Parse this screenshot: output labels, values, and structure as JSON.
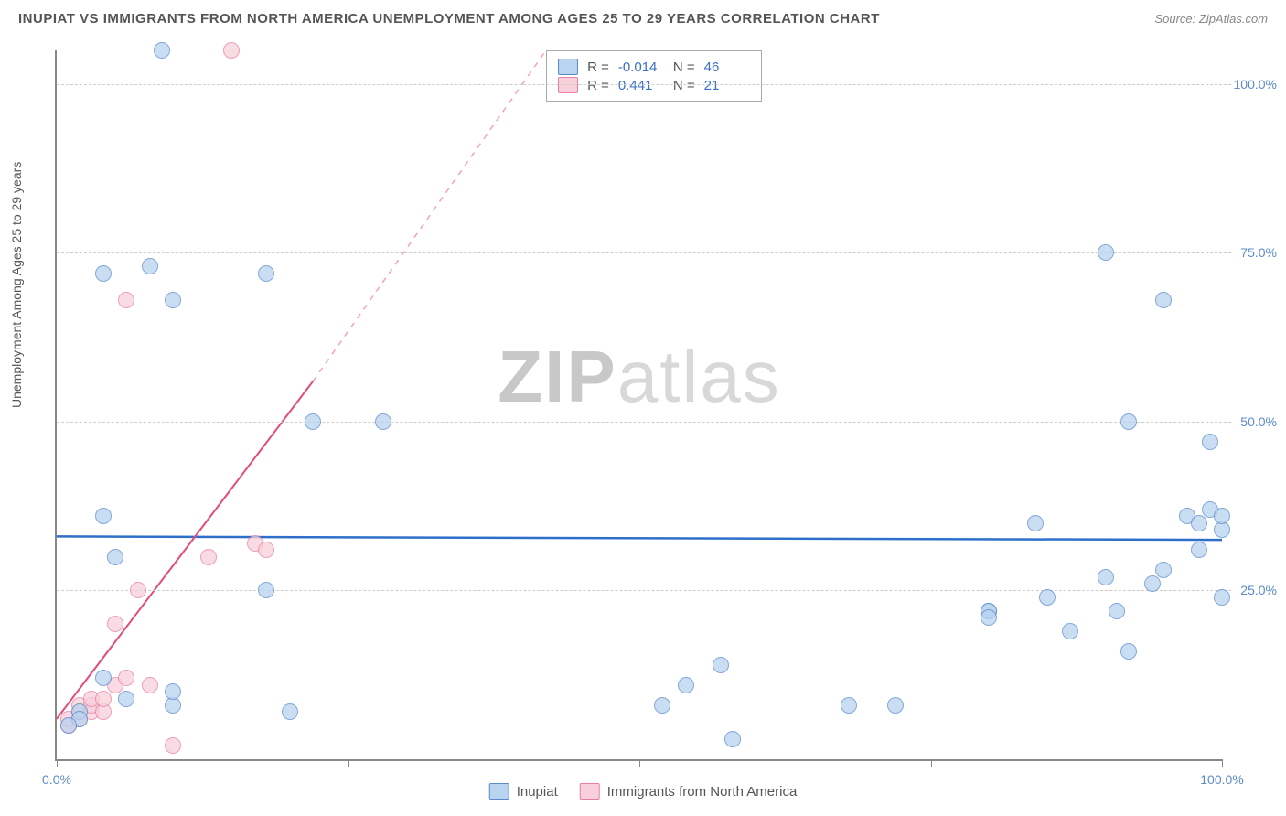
{
  "header": {
    "title": "INUPIAT VS IMMIGRANTS FROM NORTH AMERICA UNEMPLOYMENT AMONG AGES 25 TO 29 YEARS CORRELATION CHART",
    "source": "Source: ZipAtlas.com"
  },
  "watermark": {
    "prefix": "ZIP",
    "suffix": "atlas"
  },
  "chart": {
    "type": "scatter",
    "ylabel": "Unemployment Among Ages 25 to 29 years",
    "xlim": [
      0,
      100
    ],
    "ylim": [
      0,
      105
    ],
    "xtick_positions": [
      0,
      25,
      50,
      75,
      100
    ],
    "xtick_labels": [
      "0.0%",
      "",
      "",
      "",
      "100.0%"
    ],
    "ytick_positions": [
      25,
      50,
      75,
      100
    ],
    "ytick_labels": [
      "25.0%",
      "50.0%",
      "75.0%",
      "100.0%"
    ],
    "background_color": "#ffffff",
    "grid_color": "#cccccc",
    "series_blue": {
      "name": "Inupiat",
      "color_fill": "#b8d4f0",
      "color_border": "#5b8bc9",
      "trend": {
        "y_at_x0": 33.0,
        "y_at_x100": 32.5,
        "color": "#2f6fc9",
        "width": 2.5
      },
      "points": [
        [
          4,
          36
        ],
        [
          5,
          30
        ],
        [
          4,
          72
        ],
        [
          8,
          73
        ],
        [
          9,
          105
        ],
        [
          10,
          68
        ],
        [
          10,
          8
        ],
        [
          10,
          10
        ],
        [
          18,
          72
        ],
        [
          18,
          25
        ],
        [
          22,
          50
        ],
        [
          28,
          50
        ],
        [
          20,
          7
        ],
        [
          6,
          9
        ],
        [
          4,
          12
        ],
        [
          2,
          7
        ],
        [
          2,
          6
        ],
        [
          1,
          5
        ],
        [
          54,
          11
        ],
        [
          57,
          14
        ],
        [
          58,
          3
        ],
        [
          52,
          8
        ],
        [
          68,
          8
        ],
        [
          72,
          8
        ],
        [
          80,
          22
        ],
        [
          80,
          22
        ],
        [
          80,
          21
        ],
        [
          85,
          24
        ],
        [
          84,
          35
        ],
        [
          87,
          19
        ],
        [
          90,
          27
        ],
        [
          92,
          50
        ],
        [
          91,
          22
        ],
        [
          90,
          75
        ],
        [
          92,
          16
        ],
        [
          94,
          26
        ],
        [
          95,
          28
        ],
        [
          95,
          68
        ],
        [
          97,
          36
        ],
        [
          98,
          31
        ],
        [
          98,
          35
        ],
        [
          99,
          37
        ],
        [
          99,
          47
        ],
        [
          100,
          24
        ],
        [
          100,
          34
        ],
        [
          100,
          36
        ]
      ]
    },
    "series_pink": {
      "name": "Immigrants from North America",
      "color_fill": "#f8d0db",
      "color_border": "#e87fa0",
      "trend_solid": {
        "x0": 0,
        "y0": 6,
        "x1": 22,
        "y1": 56,
        "color": "#e24b7a",
        "width": 2
      },
      "trend_dash": {
        "x0": 22,
        "y0": 56,
        "x1": 42,
        "y1": 105,
        "color": "#f2a3bd",
        "width": 1.5
      },
      "points": [
        [
          1,
          5
        ],
        [
          1,
          6
        ],
        [
          2,
          6
        ],
        [
          2,
          7
        ],
        [
          2,
          8
        ],
        [
          3,
          7
        ],
        [
          3,
          8
        ],
        [
          3,
          9
        ],
        [
          4,
          7
        ],
        [
          4,
          9
        ],
        [
          5,
          11
        ],
        [
          5,
          20
        ],
        [
          6,
          68
        ],
        [
          6,
          12
        ],
        [
          7,
          25
        ],
        [
          8,
          11
        ],
        [
          10,
          2
        ],
        [
          13,
          30
        ],
        [
          15,
          105
        ],
        [
          17,
          32
        ],
        [
          18,
          31
        ]
      ]
    }
  },
  "legend_stats": {
    "rows": [
      {
        "swatch": "blue",
        "r_label": "R =",
        "r_value": "-0.014",
        "n_label": "N =",
        "n_value": "46"
      },
      {
        "swatch": "pink",
        "r_label": "R =",
        "r_value": "0.441",
        "n_label": "N =",
        "n_value": "21"
      }
    ]
  },
  "bottom_legend": {
    "items": [
      {
        "swatch": "blue",
        "label": "Inupiat"
      },
      {
        "swatch": "pink",
        "label": "Immigrants from North America"
      }
    ]
  }
}
